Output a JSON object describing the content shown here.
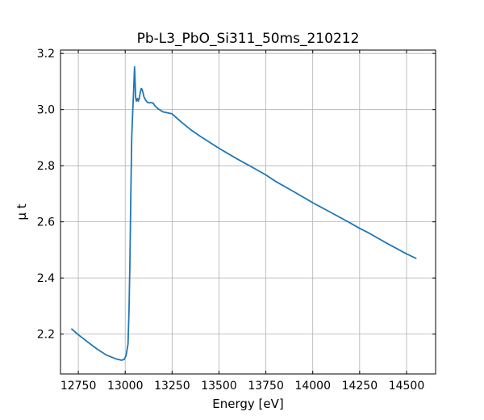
{
  "chart_data": {
    "type": "line",
    "title": "Pb-L3_PbO_Si311_50ms_210212",
    "xlabel": "Energy [eV]",
    "ylabel": "μ t",
    "xlim": [
      12655,
      14655
    ],
    "ylim": [
      2.058,
      3.212
    ],
    "grid": true,
    "x_ticks": [
      12750,
      13000,
      13250,
      13500,
      13750,
      14000,
      14250,
      14500
    ],
    "y_ticks": [
      2.2,
      2.4,
      2.6,
      2.8,
      3.0,
      3.2
    ],
    "x_tick_labels": [
      "12750",
      "13000",
      "13250",
      "13500",
      "13750",
      "14000",
      "14250",
      "14500"
    ],
    "y_tick_labels": [
      "2.2",
      "2.4",
      "2.6",
      "2.8",
      "3.0",
      "3.2"
    ],
    "series": [
      {
        "color": "#1f77b4",
        "x": [
          12715,
          12750,
          12800,
          12850,
          12900,
          12950,
          12980,
          12995,
          13005,
          13015,
          13020,
          13025,
          13030,
          13035,
          13040,
          13045,
          13050,
          13053,
          13056,
          13060,
          13065,
          13070,
          13075,
          13080,
          13085,
          13090,
          13095,
          13100,
          13110,
          13120,
          13130,
          13140,
          13150,
          13160,
          13175,
          13200,
          13250,
          13300,
          13350,
          13400,
          13500,
          13600,
          13700,
          13750,
          13800,
          13900,
          14000,
          14100,
          14200,
          14250,
          14300,
          14400,
          14500,
          14550
        ],
        "y": [
          2.218,
          2.198,
          2.172,
          2.147,
          2.125,
          2.112,
          2.107,
          2.11,
          2.125,
          2.165,
          2.28,
          2.45,
          2.7,
          2.9,
          2.99,
          3.07,
          3.152,
          3.1,
          3.04,
          3.03,
          3.04,
          3.03,
          3.04,
          3.06,
          3.075,
          3.072,
          3.06,
          3.045,
          3.032,
          3.025,
          3.024,
          3.025,
          3.022,
          3.012,
          3.003,
          2.992,
          2.985,
          2.955,
          2.928,
          2.905,
          2.862,
          2.823,
          2.786,
          2.767,
          2.745,
          2.707,
          2.668,
          2.632,
          2.596,
          2.577,
          2.56,
          2.522,
          2.486,
          2.47
        ]
      }
    ]
  }
}
